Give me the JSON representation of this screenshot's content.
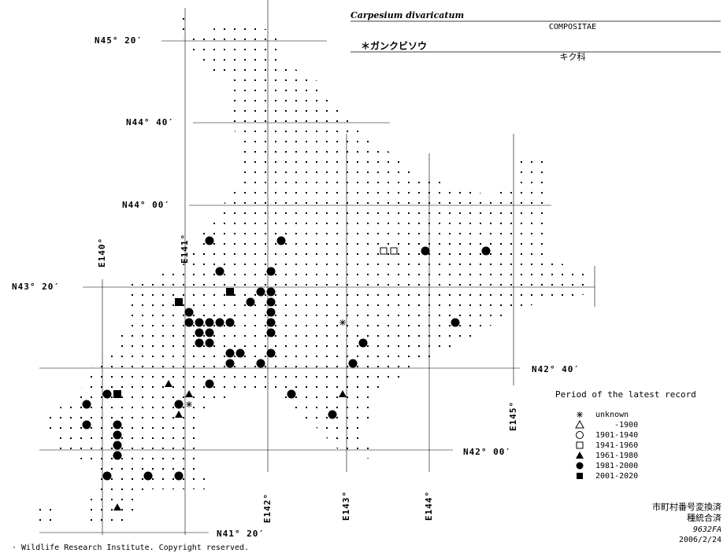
{
  "header": {
    "title": "Carpesium divaricatum",
    "family": "COMPOSITAE",
    "japanese_name": "＊ガンクビソウ",
    "family_japanese": "キク科"
  },
  "latitudes": [
    "N45° 20′",
    "N44° 40′",
    "N44° 00′",
    "N43° 20′",
    "N42° 40′",
    "N42° 00′",
    "N41° 20′"
  ],
  "longitudes": [
    "E140°",
    "E141°",
    "E142°",
    "E143°",
    "E144°",
    "E145°"
  ],
  "legend": {
    "title": "Period of the latest record",
    "items": [
      "unknown",
      "-1900",
      "1901-1940",
      "1941-1960",
      "1961-1980",
      "1981-2000",
      "2001-2020"
    ]
  },
  "notes": [
    "市町村番号変換済",
    "種統合済",
    "9632FA",
    "2006/2/24"
  ],
  "footer": "· Wildlife Research Institute. Copyright reserved."
}
